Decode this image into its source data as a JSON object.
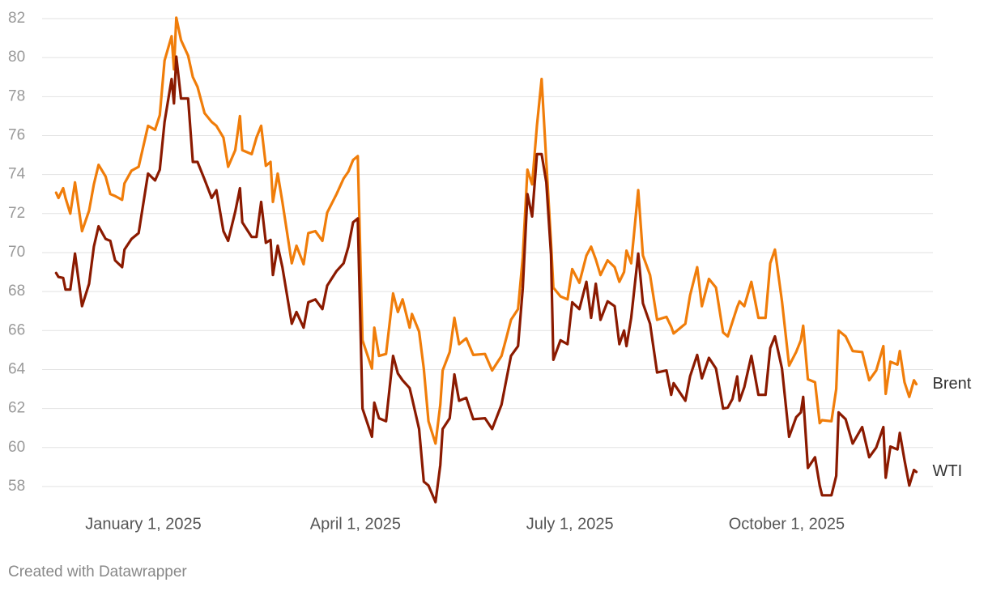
{
  "chart_data": {
    "type": "line",
    "credit": "Created with Datawrapper",
    "x": [
      "2024-11-25",
      "2024-11-26",
      "2024-11-28",
      "2024-11-29",
      "2024-12-01",
      "2024-12-03",
      "2024-12-06",
      "2024-12-09",
      "2024-12-11",
      "2024-12-13",
      "2024-12-16",
      "2024-12-18",
      "2024-12-20",
      "2024-12-23",
      "2024-12-24",
      "2024-12-27",
      "2024-12-30",
      "2025-01-03",
      "2025-01-06",
      "2025-01-08",
      "2025-01-10",
      "2025-01-13",
      "2025-01-14",
      "2025-01-15",
      "2025-01-17",
      "2025-01-20",
      "2025-01-22",
      "2025-01-24",
      "2025-01-27",
      "2025-01-30",
      "2025-02-01",
      "2025-02-04",
      "2025-02-06",
      "2025-02-09",
      "2025-02-11",
      "2025-02-12",
      "2025-02-16",
      "2025-02-18",
      "2025-02-20",
      "2025-02-22",
      "2025-02-24",
      "2025-02-25",
      "2025-02-27",
      "2025-03-01",
      "2025-03-05",
      "2025-03-07",
      "2025-03-10",
      "2025-03-12",
      "2025-03-15",
      "2025-03-18",
      "2025-03-20",
      "2025-03-24",
      "2025-03-27",
      "2025-03-29",
      "2025-03-31",
      "2025-04-02",
      "2025-04-04",
      "2025-04-08",
      "2025-04-09",
      "2025-04-11",
      "2025-04-14",
      "2025-04-17",
      "2025-04-19",
      "2025-04-21",
      "2025-04-24",
      "2025-04-25",
      "2025-04-28",
      "2025-04-30",
      "2025-05-02",
      "2025-05-05",
      "2025-05-07",
      "2025-05-08",
      "2025-05-11",
      "2025-05-13",
      "2025-05-15",
      "2025-05-18",
      "2025-05-21",
      "2025-05-26",
      "2025-05-29",
      "2025-06-02",
      "2025-06-04",
      "2025-06-06",
      "2025-06-09",
      "2025-06-11",
      "2025-06-13",
      "2025-06-15",
      "2025-06-17",
      "2025-06-19",
      "2025-06-21",
      "2025-06-23",
      "2025-06-24",
      "2025-06-27",
      "2025-06-30",
      "2025-07-02",
      "2025-07-05",
      "2025-07-08",
      "2025-07-10",
      "2025-07-12",
      "2025-07-14",
      "2025-07-17",
      "2025-07-20",
      "2025-07-22",
      "2025-07-24",
      "2025-07-25",
      "2025-07-27",
      "2025-07-30",
      "2025-08-01",
      "2025-08-04",
      "2025-08-07",
      "2025-08-11",
      "2025-08-13",
      "2025-08-14",
      "2025-08-19",
      "2025-08-21",
      "2025-08-24",
      "2025-08-26",
      "2025-08-29",
      "2025-09-01",
      "2025-09-04",
      "2025-09-06",
      "2025-09-08",
      "2025-09-10",
      "2025-09-11",
      "2025-09-13",
      "2025-09-16",
      "2025-09-19",
      "2025-09-22",
      "2025-09-24",
      "2025-09-26",
      "2025-09-29",
      "2025-10-02",
      "2025-10-05",
      "2025-10-07",
      "2025-10-08",
      "2025-10-10",
      "2025-10-13",
      "2025-10-15",
      "2025-10-16",
      "2025-10-20",
      "2025-10-22",
      "2025-10-23",
      "2025-10-26",
      "2025-10-29",
      "2025-11-02",
      "2025-11-05",
      "2025-11-08",
      "2025-11-11",
      "2025-11-12",
      "2025-11-14",
      "2025-11-17",
      "2025-11-18",
      "2025-11-20",
      "2025-11-22",
      "2025-11-24",
      "2025-11-25"
    ],
    "series": [
      {
        "name": "Brent",
        "color": "#f07d0a",
        "values": [
          73.07,
          72.8,
          73.3,
          72.8,
          72.0,
          73.6,
          71.1,
          72.15,
          73.5,
          74.5,
          73.9,
          73.0,
          72.9,
          72.7,
          73.55,
          74.2,
          74.4,
          76.5,
          76.3,
          77.05,
          79.85,
          81.1,
          79.4,
          82.05,
          80.9,
          80.1,
          79.0,
          78.5,
          77.15,
          76.7,
          76.5,
          75.9,
          74.4,
          75.25,
          77.0,
          75.25,
          75.05,
          75.9,
          76.5,
          74.45,
          74.65,
          72.6,
          74.05,
          72.6,
          69.45,
          70.35,
          69.4,
          71.0,
          71.1,
          70.6,
          72.05,
          73.0,
          73.8,
          74.15,
          74.75,
          74.95,
          65.5,
          64.05,
          66.15,
          64.7,
          64.8,
          67.9,
          66.95,
          67.6,
          66.15,
          66.85,
          65.95,
          64.05,
          61.35,
          60.2,
          62.2,
          63.95,
          64.9,
          66.65,
          65.3,
          65.6,
          64.75,
          64.8,
          63.95,
          64.7,
          65.6,
          66.55,
          67.1,
          69.75,
          74.25,
          73.5,
          76.5,
          78.9,
          74.65,
          70.5,
          68.2,
          67.75,
          67.6,
          69.15,
          68.45,
          69.85,
          70.3,
          69.65,
          68.85,
          69.6,
          69.25,
          68.5,
          69.0,
          70.1,
          69.45,
          73.2,
          69.85,
          68.85,
          66.55,
          66.7,
          66.2,
          65.85,
          66.35,
          67.8,
          69.25,
          67.25,
          68.65,
          68.2,
          65.9,
          65.7,
          66.45,
          67.2,
          67.5,
          67.25,
          68.5,
          66.65,
          66.65,
          69.45,
          70.15,
          67.5,
          64.2,
          64.9,
          65.5,
          66.25,
          63.5,
          63.35,
          61.25,
          61.4,
          61.35,
          63.0,
          66.0,
          65.7,
          64.95,
          64.9,
          63.45,
          63.95,
          65.2,
          62.75,
          64.4,
          64.25,
          64.95,
          63.35,
          62.6,
          63.45,
          63.25
        ]
      },
      {
        "name": "WTI",
        "color": "#8b1a00",
        "values": [
          68.95,
          68.75,
          68.7,
          68.1,
          68.1,
          69.95,
          67.25,
          68.4,
          70.3,
          71.35,
          70.7,
          70.6,
          69.6,
          69.25,
          70.15,
          70.7,
          71.0,
          74.05,
          73.7,
          74.25,
          76.7,
          78.9,
          77.65,
          80.05,
          77.9,
          77.9,
          74.65,
          74.65,
          73.75,
          72.8,
          73.2,
          71.1,
          70.6,
          72.1,
          73.3,
          71.55,
          70.8,
          70.8,
          72.6,
          70.5,
          70.65,
          68.85,
          70.35,
          69.25,
          66.35,
          66.95,
          66.15,
          67.45,
          67.6,
          67.1,
          68.3,
          69.05,
          69.45,
          70.3,
          71.55,
          71.75,
          62.0,
          60.55,
          62.3,
          61.5,
          61.35,
          64.7,
          63.8,
          63.45,
          63.05,
          62.55,
          60.95,
          58.25,
          58.05,
          57.2,
          59.1,
          60.95,
          61.5,
          63.75,
          62.4,
          62.55,
          61.45,
          61.5,
          60.95,
          62.2,
          63.45,
          64.7,
          65.2,
          68.15,
          73.0,
          71.85,
          75.05,
          75.05,
          73.6,
          69.9,
          64.5,
          65.5,
          65.3,
          67.45,
          67.1,
          68.5,
          66.65,
          68.4,
          66.55,
          67.5,
          67.25,
          65.3,
          66.0,
          65.2,
          66.65,
          69.95,
          67.4,
          66.35,
          63.85,
          63.95,
          62.7,
          63.3,
          62.4,
          63.65,
          64.75,
          63.55,
          64.6,
          64.05,
          62.0,
          62.05,
          62.5,
          63.65,
          62.4,
          63.1,
          64.7,
          62.7,
          62.7,
          65.1,
          65.7,
          64.05,
          60.55,
          61.55,
          61.8,
          62.6,
          58.95,
          59.5,
          58.05,
          57.55,
          57.55,
          58.55,
          61.8,
          61.45,
          60.2,
          61.05,
          59.5,
          60.0,
          61.05,
          58.45,
          60.05,
          59.9,
          60.75,
          59.35,
          58.05,
          58.85,
          58.75
        ]
      }
    ],
    "xlim": [
      "2024-11-25",
      "2025-11-25"
    ],
    "xticks": [
      {
        "value": "2025-01-01",
        "label": "January 1, 2025"
      },
      {
        "value": "2025-04-01",
        "label": "April 1, 2025"
      },
      {
        "value": "2025-07-01",
        "label": "July 1, 2025"
      },
      {
        "value": "2025-10-01",
        "label": "October 1, 2025"
      }
    ],
    "ylim": [
      57,
      82
    ],
    "yticks": [
      58,
      60,
      62,
      64,
      66,
      68,
      70,
      72,
      74,
      76,
      78,
      80,
      82
    ],
    "grid": true
  }
}
